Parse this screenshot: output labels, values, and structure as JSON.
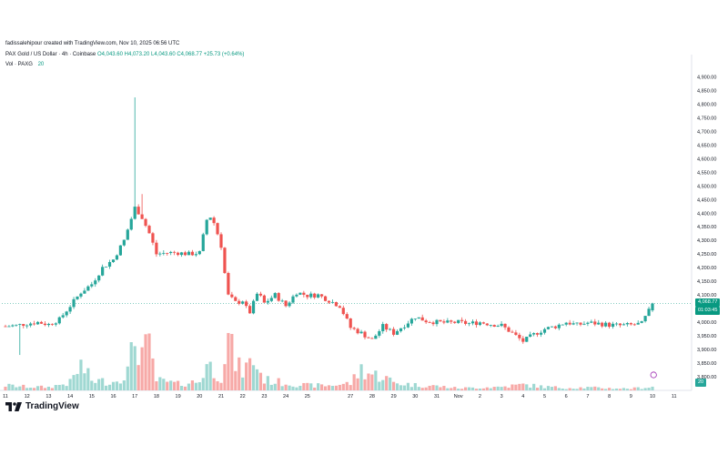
{
  "header": {
    "created_by": "fadissalehipour created with TradingView.com, Nov 10, 2025 06:56 UTC",
    "symbol": "PAX Gold / US Dollar · 4h · Coinbase",
    "ohlc": "O4,043.60 H4,073.20 L4,043.60 C4,068.77 +25.73 (+0.64%)",
    "volume_label": "Vol · PAXG",
    "volume_value": "20"
  },
  "price_tags": {
    "last_price": "4,068.77",
    "countdown": "01:03:45",
    "volume": "20"
  },
  "brand": {
    "name": "TradingView"
  },
  "colors": {
    "up": "#26a69a",
    "down": "#ef5350",
    "vol_up": "#9fd8d2",
    "vol_down": "#f7a9a7",
    "last_line": "#089981"
  },
  "chart_data": {
    "type": "candlestick",
    "title": "PAX Gold / US Dollar · 4h · Coinbase",
    "xlabel": "",
    "ylabel": "USD",
    "ylim": [
      3750,
      4975
    ],
    "y_ticks": [
      3800,
      3850,
      3900,
      3950,
      4000,
      4050,
      4100,
      4150,
      4200,
      4250,
      4300,
      4350,
      4400,
      4450,
      4500,
      4550,
      4600,
      4650,
      4700,
      4750,
      4800,
      4850,
      4900
    ],
    "y_tick_labels": [
      "3,800.00",
      "3,850.00",
      "3,900.00",
      "3,950.00",
      "4,000.00",
      "4,050.00",
      "4,100.00",
      "4,150.00",
      "4,200.00",
      "4,250.00",
      "4,300.00",
      "4,350.00",
      "4,400.00",
      "4,450.00",
      "4,500.00",
      "4,550.00",
      "4,600.00",
      "4,650.00",
      "4,700.00",
      "4,750.00",
      "4,800.00",
      "4,850.00",
      "4,900.00"
    ],
    "x_ticks": [
      {
        "day": 0,
        "label": "11"
      },
      {
        "day": 1,
        "label": "12"
      },
      {
        "day": 2,
        "label": "13"
      },
      {
        "day": 3,
        "label": "14"
      },
      {
        "day": 4,
        "label": "15"
      },
      {
        "day": 5,
        "label": "16"
      },
      {
        "day": 6,
        "label": "17"
      },
      {
        "day": 7,
        "label": "18"
      },
      {
        "day": 8,
        "label": "19"
      },
      {
        "day": 9,
        "label": "20"
      },
      {
        "day": 10,
        "label": "21"
      },
      {
        "day": 11,
        "label": "22"
      },
      {
        "day": 12,
        "label": "23"
      },
      {
        "day": 13,
        "label": "24"
      },
      {
        "day": 14,
        "label": "25"
      },
      {
        "day": 16,
        "label": "27"
      },
      {
        "day": 17,
        "label": "28"
      },
      {
        "day": 18,
        "label": "29"
      },
      {
        "day": 19,
        "label": "30"
      },
      {
        "day": 20,
        "label": "31"
      },
      {
        "day": 21,
        "label": "Nov"
      },
      {
        "day": 22,
        "label": "2"
      },
      {
        "day": 23,
        "label": "3"
      },
      {
        "day": 24,
        "label": "4"
      },
      {
        "day": 25,
        "label": "5"
      },
      {
        "day": 26,
        "label": "6"
      },
      {
        "day": 27,
        "label": "7"
      },
      {
        "day": 28,
        "label": "8"
      },
      {
        "day": 29,
        "label": "9"
      },
      {
        "day": 30,
        "label": "10"
      },
      {
        "day": 31,
        "label": "11"
      }
    ],
    "keyframes": [
      [
        0,
        3985
      ],
      [
        0.5,
        3988
      ],
      [
        1,
        3995
      ],
      [
        1.5,
        4000
      ],
      [
        2,
        3992
      ],
      [
        2.5,
        4010
      ],
      [
        3,
        4060
      ],
      [
        3.5,
        4110
      ],
      [
        4,
        4140
      ],
      [
        4.5,
        4200
      ],
      [
        5,
        4230
      ],
      [
        5.5,
        4300
      ],
      [
        6,
        4420
      ],
      [
        6.3,
        4390
      ],
      [
        6.7,
        4320
      ],
      [
        7,
        4250
      ],
      [
        7.5,
        4255
      ],
      [
        8,
        4255
      ],
      [
        8.5,
        4250
      ],
      [
        9,
        4255
      ],
      [
        9.4,
        4400
      ],
      [
        9.7,
        4360
      ],
      [
        10,
        4280
      ],
      [
        10.3,
        4100
      ],
      [
        10.7,
        4070
      ],
      [
        11,
        4080
      ],
      [
        11.3,
        4030
      ],
      [
        11.7,
        4110
      ],
      [
        12,
        4070
      ],
      [
        12.5,
        4100
      ],
      [
        13,
        4060
      ],
      [
        13.5,
        4110
      ],
      [
        14,
        4098
      ],
      [
        14.5,
        4100
      ],
      [
        15,
        4080
      ],
      [
        15.5,
        4060
      ],
      [
        16,
        3980
      ],
      [
        16.5,
        3960
      ],
      [
        17,
        3935
      ],
      [
        17.5,
        3985
      ],
      [
        18,
        3960
      ],
      [
        18.5,
        3990
      ],
      [
        19,
        4020
      ],
      [
        19.5,
        4005
      ],
      [
        20,
        4000
      ],
      [
        20.5,
        3998
      ],
      [
        21,
        4000
      ],
      [
        21.5,
        3995
      ],
      [
        22,
        4000
      ],
      [
        22.5,
        3993
      ],
      [
        23,
        3988
      ],
      [
        23.5,
        3960
      ],
      [
        24,
        3930
      ],
      [
        24.5,
        3955
      ],
      [
        25,
        3975
      ],
      [
        25.5,
        3985
      ],
      [
        26,
        4000
      ],
      [
        26.5,
        3990
      ],
      [
        27,
        3998
      ],
      [
        27.5,
        3995
      ],
      [
        28,
        3990
      ],
      [
        28.5,
        3988
      ],
      [
        29,
        3990
      ],
      [
        29.5,
        3995
      ],
      [
        29.85,
        4043.6
      ],
      [
        30.0,
        4068.77
      ]
    ],
    "spikes": [
      {
        "day": 6.05,
        "high": 4825
      },
      {
        "day": 6.35,
        "high": 4470
      },
      {
        "day": 0.7,
        "low": 3880
      }
    ],
    "volume_profile": [
      [
        0,
        14
      ],
      [
        1,
        10
      ],
      [
        2,
        9
      ],
      [
        3,
        22
      ],
      [
        3.5,
        70
      ],
      [
        4,
        28
      ],
      [
        5,
        24
      ],
      [
        5.7,
        55
      ],
      [
        6.0,
        145
      ],
      [
        6.3,
        110
      ],
      [
        6.7,
        115
      ],
      [
        7,
        28
      ],
      [
        8,
        18
      ],
      [
        9,
        25
      ],
      [
        9.3,
        75
      ],
      [
        10,
        40
      ],
      [
        10.3,
        150
      ],
      [
        10.7,
        70
      ],
      [
        11,
        55
      ],
      [
        11.5,
        85
      ],
      [
        12,
        30
      ],
      [
        13,
        20
      ],
      [
        14,
        14
      ],
      [
        15,
        14
      ],
      [
        16,
        20
      ],
      [
        16.5,
        60
      ],
      [
        17,
        45
      ],
      [
        17.5,
        40
      ],
      [
        18,
        22
      ],
      [
        19,
        15
      ],
      [
        20,
        12
      ],
      [
        21,
        6
      ],
      [
        22,
        8
      ],
      [
        23,
        10
      ],
      [
        24,
        16
      ],
      [
        25,
        10
      ],
      [
        26,
        7
      ],
      [
        27,
        8
      ],
      [
        28,
        6
      ],
      [
        29,
        5
      ],
      [
        30,
        10
      ]
    ],
    "volume_max": 150,
    "last_price": 4068.77
  }
}
